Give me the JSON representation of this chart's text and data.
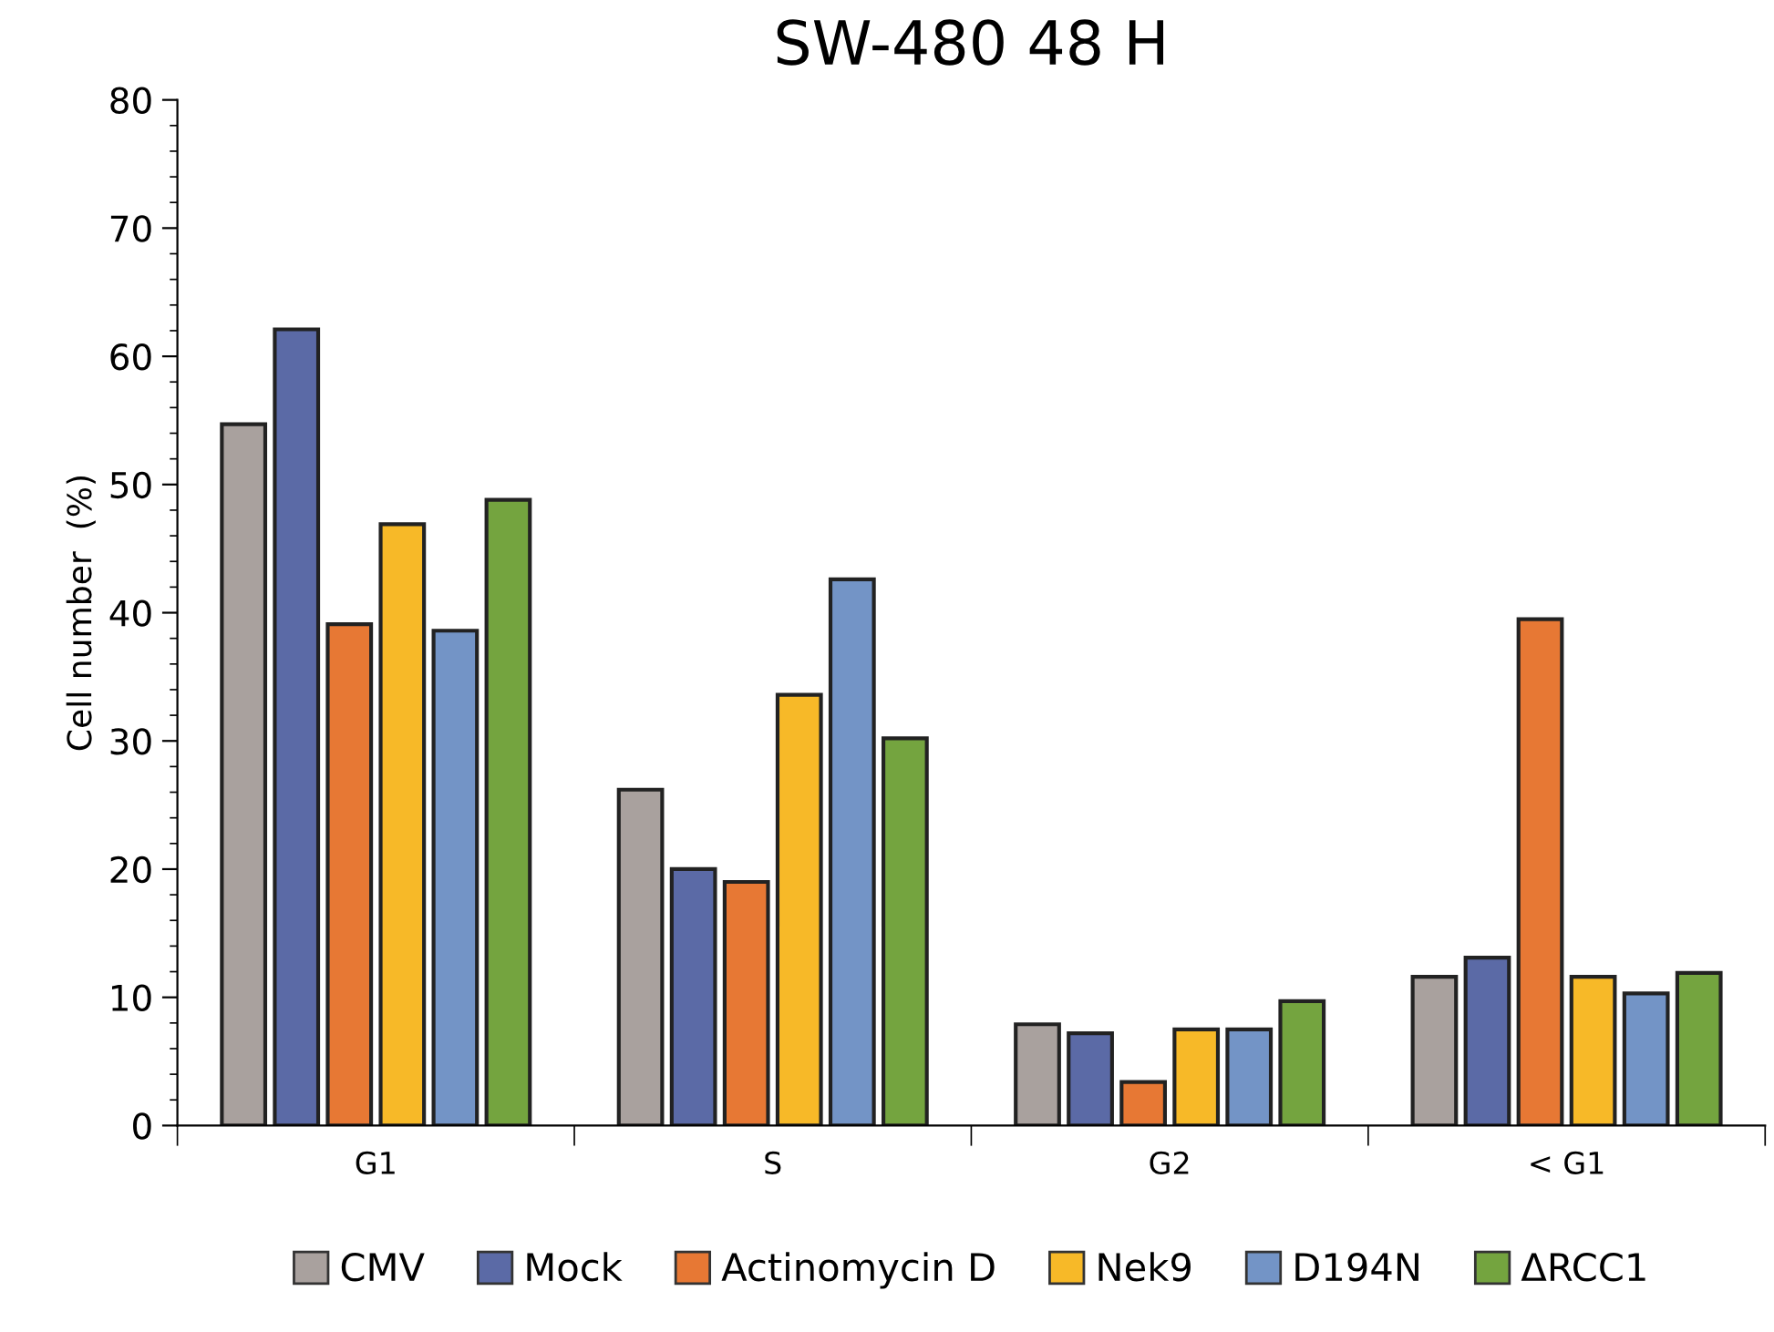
{
  "chart_data": {
    "type": "bar",
    "title": "SW-480 48 H",
    "ylabel": "Cell number  (%)",
    "categories": [
      "G1",
      "S",
      "G2",
      "< G1"
    ],
    "series": [
      {
        "name": "CMV",
        "color": "#a9a19e",
        "values": [
          54.7,
          26.2,
          7.9,
          11.6
        ]
      },
      {
        "name": "Mock",
        "color": "#5b6aa6",
        "values": [
          62.1,
          20.0,
          7.2,
          13.1
        ]
      },
      {
        "name": "Actinomycin D",
        "color": "#e77834",
        "values": [
          39.1,
          19.0,
          3.4,
          39.5
        ]
      },
      {
        "name": "Nek9",
        "color": "#f7b928",
        "values": [
          46.9,
          33.6,
          7.5,
          11.6
        ]
      },
      {
        "name": "D194N",
        "color": "#7394c6",
        "values": [
          38.6,
          42.6,
          7.5,
          10.3
        ]
      },
      {
        "name": "ΔRCC1",
        "color": "#74a43f",
        "values": [
          48.8,
          30.2,
          9.7,
          11.9
        ]
      }
    ],
    "ylim": [
      0,
      80
    ],
    "yticks": [
      0,
      10,
      20,
      30,
      40,
      50,
      60,
      70,
      80
    ],
    "grid": false,
    "legend": "bottom"
  }
}
